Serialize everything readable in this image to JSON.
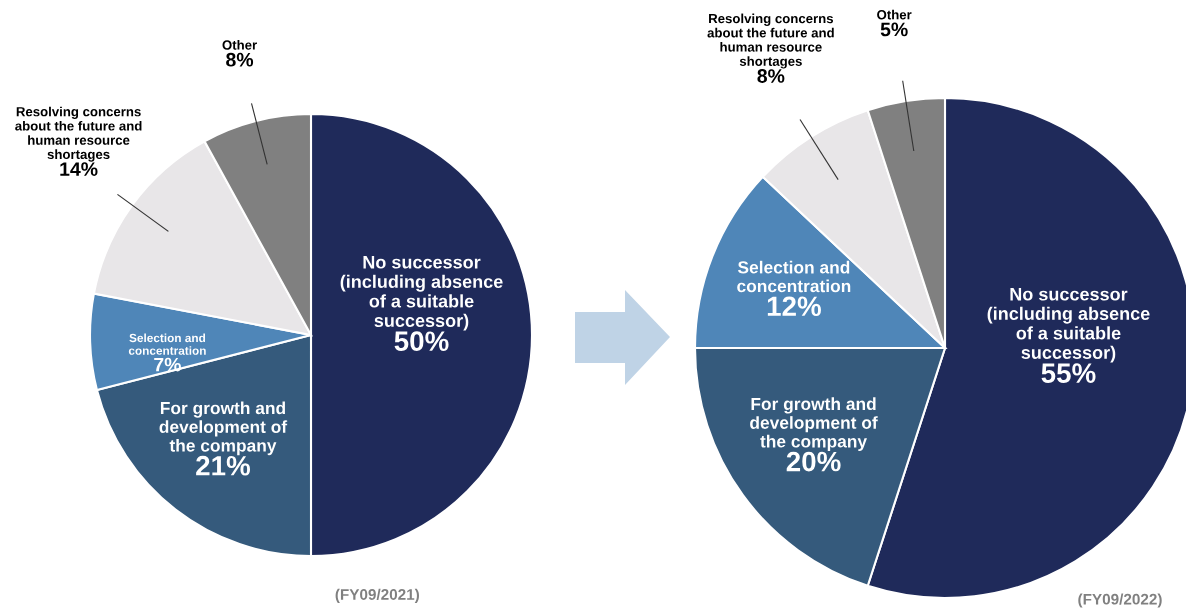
{
  "chart_data": [
    {
      "type": "pie",
      "categories": [
        "No successor (including absence of a suitable successor)",
        "For growth and development of the company",
        "Selection and concentration",
        "Resolving concerns about the future and human resource shortages",
        "Other"
      ],
      "values": [
        50,
        21,
        7,
        14,
        8
      ],
      "value_labels": [
        "50%",
        "21%",
        "7%",
        "14%",
        "8%"
      ],
      "colors": [
        "#1f2a5a",
        "#355a7c",
        "#4f86b8",
        "#e8e6e8",
        "#808080"
      ],
      "annotations": [
        "(FY09/2021)"
      ]
    },
    {
      "type": "pie",
      "categories": [
        "No successor (including absence of a suitable successor)",
        "For growth and development of the company",
        "Selection and concentration",
        "Resolving concerns about the future and human resource shortages",
        "Other"
      ],
      "values": [
        55,
        20,
        12,
        8,
        5
      ],
      "value_labels": [
        "55%",
        "20%",
        "12%",
        "8%",
        "5%"
      ],
      "colors": [
        "#1f2a5a",
        "#355a7c",
        "#4f86b8",
        "#e8e6e8",
        "#808080"
      ],
      "annotations": [
        "(FY09/2022)"
      ]
    }
  ]
}
